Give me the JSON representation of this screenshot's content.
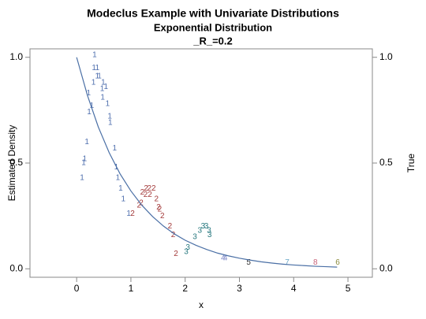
{
  "chart_data": {
    "type": "scatter",
    "title": "Modeclus Example with Univariate Distributions",
    "subtitle": "Exponential Distribution",
    "annotation": "_R_=0.2",
    "xlabel": "x",
    "ylabel": "Estimated Density",
    "y2label": "True",
    "xlim": [
      -0.86,
      5.45
    ],
    "xticks": [
      0,
      1,
      2,
      3,
      4,
      5
    ],
    "ylim": [
      -0.04,
      1.04
    ],
    "yticks": [
      {
        "value": 0,
        "label": "0.0"
      },
      {
        "value": 0.5,
        "label": "0.5"
      },
      {
        "value": 1,
        "label": "1.0"
      }
    ],
    "y2lim": [
      -0.04,
      1.04
    ],
    "y2ticks": [
      {
        "value": 0,
        "label": "0.0"
      },
      {
        "value": 0.5,
        "label": "0.5"
      },
      {
        "value": 1,
        "label": "1.0"
      }
    ],
    "series": [
      {
        "name": "1",
        "color": "#4f6fae",
        "x": [
          0.33,
          0.32,
          0.38,
          0.31,
          0.38,
          0.42,
          0.49,
          0.47,
          0.54,
          0.48,
          0.22,
          0.23,
          0.28,
          0.57,
          0.61,
          0.62,
          0.19,
          0.15,
          0.13,
          0.1,
          0.7,
          0.73,
          0.76,
          0.81,
          0.86,
          0.96
        ],
        "values": [
          1.01,
          0.95,
          0.95,
          0.88,
          0.91,
          0.91,
          0.88,
          0.85,
          0.86,
          0.81,
          0.83,
          0.74,
          0.77,
          0.78,
          0.72,
          0.69,
          0.6,
          0.52,
          0.5,
          0.43,
          0.57,
          0.48,
          0.43,
          0.38,
          0.33,
          0.26
        ]
      },
      {
        "name": "2",
        "color": "#a33a3a",
        "x": [
          1.28,
          1.34,
          1.42,
          1.21,
          1.27,
          1.35,
          1.47,
          1.15,
          1.19,
          1.51,
          1.53,
          1.58,
          1.03,
          1.72,
          1.78,
          1.83
        ],
        "values": [
          0.38,
          0.38,
          0.38,
          0.36,
          0.35,
          0.35,
          0.33,
          0.3,
          0.31,
          0.29,
          0.28,
          0.25,
          0.26,
          0.2,
          0.16,
          0.07
        ]
      },
      {
        "name": "3",
        "color": "#2a7a80",
        "x": [
          2.33,
          2.39,
          2.44,
          2.27,
          2.45,
          2.18,
          2.05,
          2.02
        ],
        "values": [
          0.2,
          0.2,
          0.18,
          0.18,
          0.16,
          0.15,
          0.1,
          0.08
        ]
      },
      {
        "name": "4",
        "color": "#7b86c6",
        "x": [
          2.7,
          2.74
        ],
        "values": [
          0.05,
          0.05
        ]
      },
      {
        "name": "5",
        "color": "#333333",
        "x": [
          3.17
        ],
        "values": [
          0.03
        ]
      },
      {
        "name": "6",
        "color": "#8a8a3a",
        "x": [
          4.81
        ],
        "values": [
          0.03
        ]
      },
      {
        "name": "7",
        "color": "#6aa7c8",
        "x": [
          3.88
        ],
        "values": [
          0.03
        ]
      },
      {
        "name": "8",
        "color": "#c8647a",
        "x": [
          4.4
        ],
        "values": [
          0.03
        ]
      },
      {
        "type": "line",
        "axis": "y2",
        "color": "#4a6fa5",
        "x": [
          0,
          0.2,
          0.4,
          0.6,
          0.8,
          1.0,
          1.2,
          1.4,
          1.6,
          1.8,
          2.0,
          2.2,
          2.4,
          2.6,
          2.8,
          3.0,
          3.2,
          3.4,
          3.6,
          3.8,
          4.0,
          4.2,
          4.4,
          4.6,
          4.8
        ],
        "values": [
          1,
          0.819,
          0.67,
          0.549,
          0.449,
          0.368,
          0.301,
          0.247,
          0.202,
          0.165,
          0.135,
          0.111,
          0.091,
          0.074,
          0.061,
          0.05,
          0.041,
          0.033,
          0.027,
          0.022,
          0.018,
          0.015,
          0.012,
          0.01,
          0.008
        ]
      }
    ]
  }
}
